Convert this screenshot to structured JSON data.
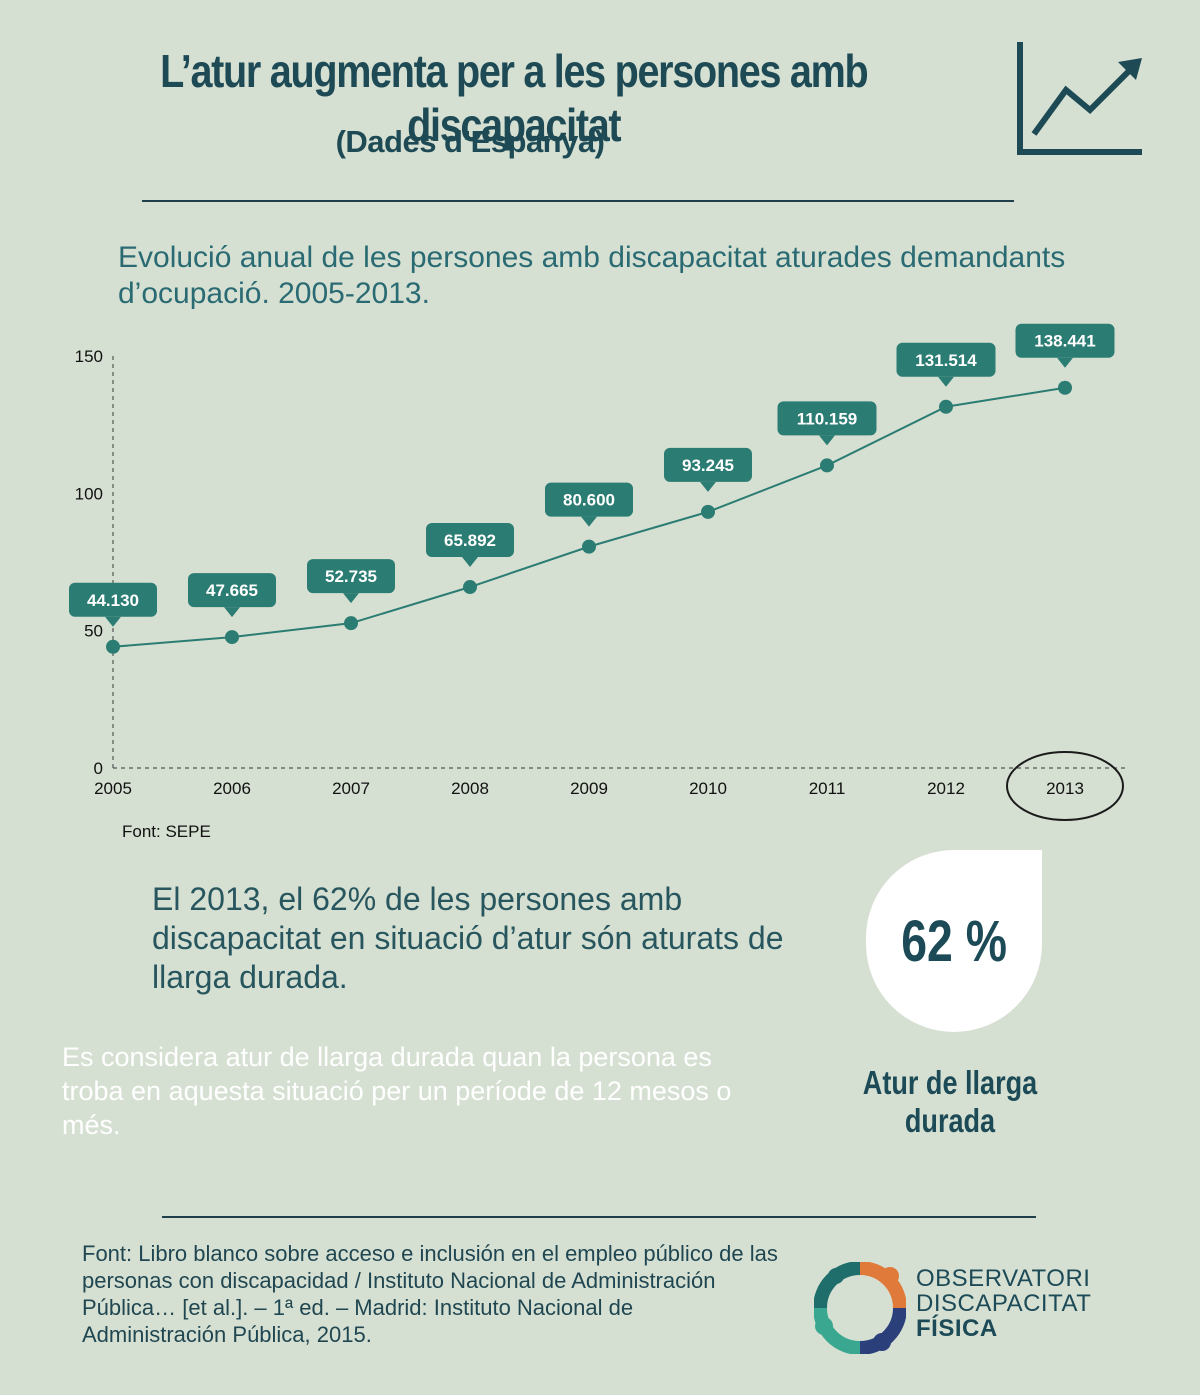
{
  "header": {
    "title": "L’atur augmenta per a les persones amb discapacitat",
    "subtitle": "(Dades d’Espanya)",
    "icon": "trend-up-chart-icon"
  },
  "chart_heading": "Evolució anual de les persones amb discapacitat aturades demandants d’ocupació. 2005-2013.",
  "chart_data": {
    "type": "line",
    "categories": [
      "2005",
      "2006",
      "2007",
      "2008",
      "2009",
      "2010",
      "2011",
      "2012",
      "2013"
    ],
    "values": [
      44.13,
      47.665,
      52.735,
      65.892,
      80.6,
      93.245,
      110.159,
      131.514,
      138.441
    ],
    "data_labels": [
      "44.130",
      "47.665",
      "52.735",
      "65.892",
      "80.600",
      "93.245",
      "110.159",
      "131.514",
      "138.441"
    ],
    "ylim": [
      0,
      150
    ],
    "yticks": [
      "0",
      "50",
      "100",
      "150"
    ],
    "highlighted_category": "2013",
    "grid": false,
    "color": "#2b7c73",
    "source": "Font: SEPE"
  },
  "stat": {
    "text": "El 2013, el 62% de les persones amb discapacitat en situació d’atur són aturats de llarga durada.",
    "definition": "Es considera atur de llarga durada quan la persona es troba en aquesta situació per un període de 12 mesos o més.",
    "badge_value": "62 %",
    "badge_caption": "Atur de llarga durada"
  },
  "footer": {
    "source": "Font: Libro blanco sobre acceso e inclusión en el empleo público de las personas con discapacidad / Instituto Nacional de Administración Pública… [et al.]. – 1ª ed. – Madrid: Instituto Nacional de Administración Pública, 2015.",
    "logo_line1": "OBSERVATORI",
    "logo_line2": "DISCAPACITAT",
    "logo_line3": "FÍSICA"
  }
}
